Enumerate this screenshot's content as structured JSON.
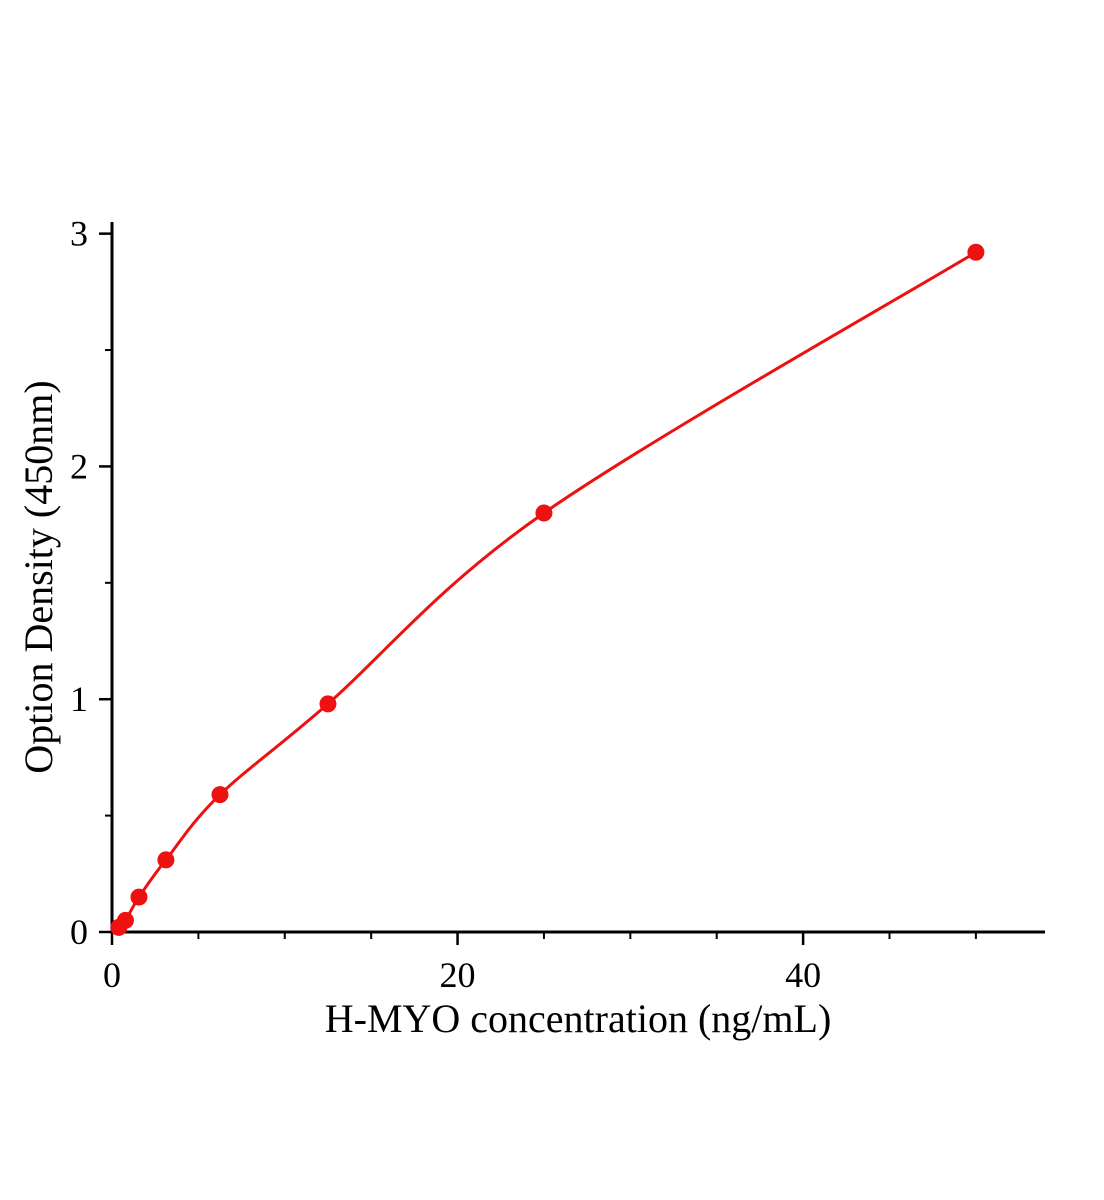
{
  "figure": {
    "background": "#ffffff"
  },
  "chart_data": {
    "type": "scatter",
    "title": "",
    "xlabel": "H-MYO concentration (ng/mL)",
    "ylabel": "Option Density (450nm)",
    "x": [
      0.39,
      0.78,
      1.56,
      3.12,
      6.25,
      12.5,
      25,
      50
    ],
    "y": [
      0.02,
      0.05,
      0.15,
      0.31,
      0.59,
      0.98,
      1.8,
      2.92
    ],
    "fit_curve": true,
    "marker_color": "#ee1111",
    "line_color": "#ee1111",
    "axis_color": "#000000",
    "xlim": [
      0,
      54
    ],
    "ylim": [
      0,
      3.05
    ],
    "x_major_ticks": [
      0,
      20,
      40
    ],
    "x_minor_step": 5,
    "y_major_ticks": [
      0,
      1,
      2,
      3
    ],
    "y_minor_step": 0.5,
    "grid": false,
    "legend": null
  }
}
